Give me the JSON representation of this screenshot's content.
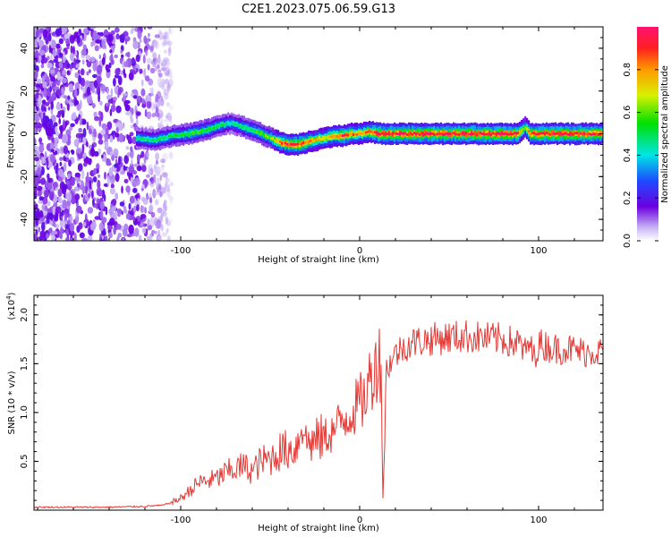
{
  "title": "C2E1.2023.075.06.59.G13",
  "chart_data": [
    {
      "type": "heatmap",
      "xlabel": "Height of straight line (km)",
      "ylabel": "Frequency (Hz)",
      "xlim": [
        -182,
        136
      ],
      "ylim": [
        -50,
        50
      ],
      "xticks": [
        -100,
        0,
        100
      ],
      "xtick_labels": [
        "-100",
        "0",
        "100"
      ],
      "yticks": [
        -40,
        -20,
        0,
        20,
        40
      ],
      "ytick_labels": [
        "-40",
        "-20",
        "0",
        "20",
        "40"
      ],
      "colorbar": {
        "label": "Normalized spectral amplitude",
        "range": [
          0,
          1
        ],
        "ticks": [
          0,
          0.2,
          0.4,
          0.6,
          0.8
        ],
        "tick_labels": [
          "0.0",
          "0.2",
          "0.4",
          "0.6",
          "0.8"
        ]
      },
      "noise_region_x": [
        -182,
        -105
      ],
      "signal_track": {
        "x": [
          -125,
          -115,
          -105,
          -95,
          -85,
          -78,
          -72,
          -65,
          -58,
          -50,
          -45,
          -40,
          -35,
          -30,
          -25,
          -20,
          -15,
          -10,
          -5,
          0,
          5,
          10,
          20,
          40,
          60,
          80,
          88,
          92,
          95,
          100,
          110,
          120,
          136
        ],
        "freq": [
          -2,
          -3,
          -1,
          0,
          2,
          4,
          5,
          3,
          1,
          -2,
          -4,
          -5,
          -5,
          -4,
          -3,
          -2,
          -1,
          -1,
          0,
          0,
          1,
          0,
          0,
          0,
          0,
          0,
          0,
          3,
          0,
          0,
          0,
          0,
          0
        ],
        "amplitude": [
          0.45,
          0.5,
          0.5,
          0.55,
          0.55,
          0.5,
          0.45,
          0.5,
          0.55,
          0.6,
          0.85,
          0.9,
          0.9,
          0.85,
          0.75,
          0.7,
          0.8,
          0.9,
          0.85,
          0.75,
          0.85,
          0.95,
          0.95,
          0.95,
          0.95,
          0.95,
          0.9,
          0.6,
          0.9,
          0.95,
          0.95,
          0.95,
          0.9
        ]
      }
    },
    {
      "type": "line",
      "xlabel": "Height of straight line (km)",
      "ylabel": "SNR (10 * v/v)",
      "y_multiplier_label": "(x10",
      "y_multiplier_exp": "4",
      "y_multiplier_close": ")",
      "xlim": [
        -182,
        136
      ],
      "ylim": [
        0,
        2.2
      ],
      "xticks": [
        -100,
        0,
        100
      ],
      "xtick_labels": [
        "-100",
        "0",
        "100"
      ],
      "yticks": [
        0.5,
        1.0,
        1.5,
        2.0
      ],
      "ytick_labels": [
        "0.5",
        "1.0",
        "1.5",
        "2.0"
      ],
      "line_color": "#e53935",
      "series": [
        {
          "x": [
            -182,
            -160,
            -140,
            -120,
            -110,
            -105,
            -100,
            -95,
            -90,
            -85,
            -80,
            -75,
            -70,
            -65,
            -60,
            -55,
            -50,
            -45,
            -40,
            -35,
            -32,
            -30,
            -25,
            -20,
            -15,
            -10,
            -5,
            0,
            3,
            5,
            8,
            10,
            12,
            13,
            15,
            20,
            25,
            30,
            40,
            50,
            60,
            70,
            80,
            85,
            90,
            92,
            95,
            97,
            100,
            105,
            110,
            115,
            120,
            125,
            130,
            136
          ],
          "y": [
            0.03,
            0.03,
            0.03,
            0.04,
            0.05,
            0.08,
            0.12,
            0.2,
            0.28,
            0.3,
            0.32,
            0.38,
            0.42,
            0.45,
            0.4,
            0.5,
            0.52,
            0.6,
            0.62,
            0.65,
            0.95,
            0.7,
            0.7,
            0.75,
            0.8,
            0.92,
            1.0,
            1.1,
            1.15,
            1.3,
            1.45,
            1.55,
            1.5,
            0.12,
            1.45,
            1.6,
            1.68,
            1.72,
            1.75,
            1.77,
            1.78,
            1.76,
            1.75,
            1.72,
            1.7,
            1.6,
            1.72,
            1.55,
            1.7,
            1.68,
            1.65,
            1.66,
            1.64,
            1.62,
            1.63,
            1.62
          ]
        }
      ]
    }
  ]
}
